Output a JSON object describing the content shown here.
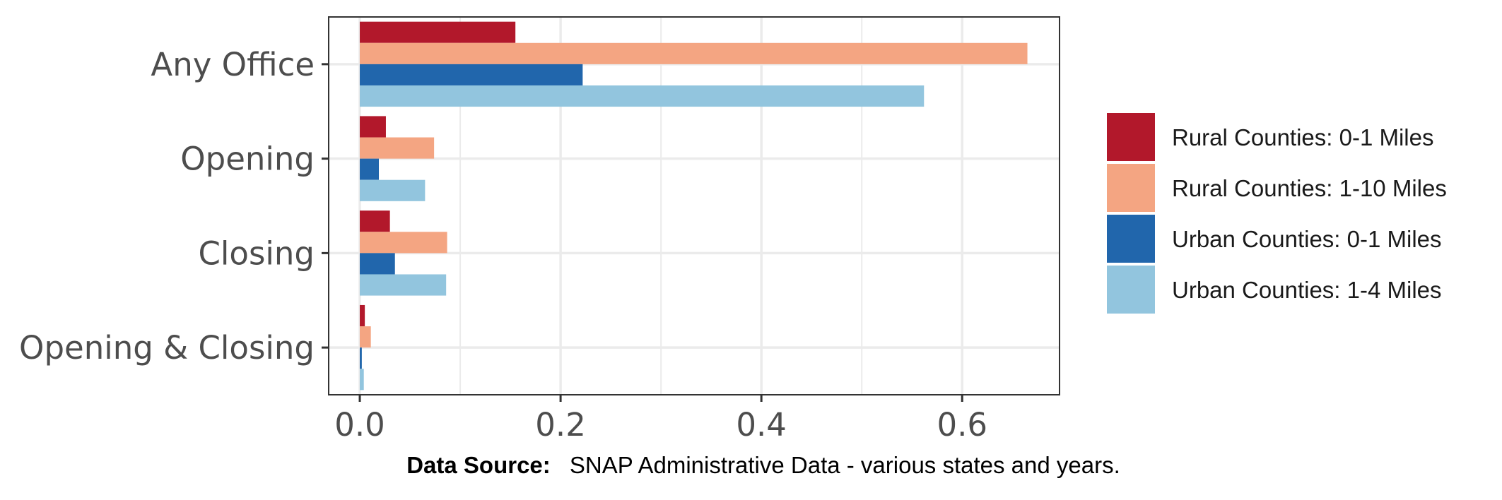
{
  "chart_data": {
    "type": "bar",
    "orientation": "horizontal",
    "categories": [
      "Any Office",
      "Opening",
      "Closing",
      "Opening & Closing"
    ],
    "series": [
      {
        "name": "Rural Counties: 0-1 Miles",
        "color": "#b2182b",
        "values": [
          0.155,
          0.026,
          0.03,
          0.005
        ]
      },
      {
        "name": "Rural Counties: 1-10 Miles",
        "color": "#f4a582",
        "values": [
          0.665,
          0.074,
          0.087,
          0.011
        ]
      },
      {
        "name": "Urban Counties: 0-1 Miles",
        "color": "#2166ac",
        "values": [
          0.222,
          0.019,
          0.035,
          0.002
        ]
      },
      {
        "name": "Urban Counties: 1-4 Miles",
        "color": "#92c5de",
        "values": [
          0.562,
          0.065,
          0.086,
          0.004
        ]
      }
    ],
    "xticks": [
      "0.0",
      "0.2",
      "0.4",
      "0.6"
    ],
    "xtick_values": [
      0,
      0.2,
      0.4,
      0.6
    ],
    "xlim": [
      -0.031,
      0.697
    ],
    "grid": true,
    "legend_position": "right",
    "caption_bold": "Data Source:",
    "caption_text": "SNAP Administrative Data - various states and years."
  }
}
